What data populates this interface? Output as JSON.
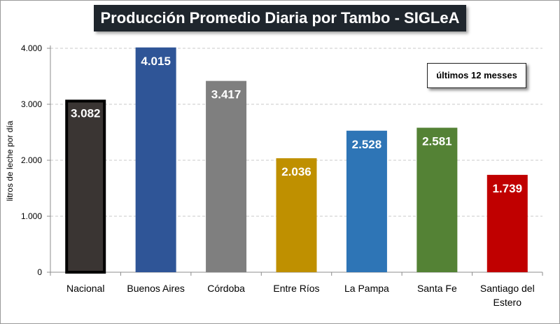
{
  "chart_data": {
    "type": "bar",
    "title": "Producción Promedio Diaria por Tambo - SIGLeA",
    "annotation": "últimos 12 messes",
    "ylabel": "litros de leche por día",
    "xlabel": "",
    "ylim": [
      0,
      4000
    ],
    "yticks": [
      "0",
      "1.000",
      "2.000",
      "3.000",
      "4.000"
    ],
    "ytick_values": [
      0,
      1000,
      2000,
      3000,
      4000
    ],
    "grid": true,
    "categories": [
      [
        "Nacional"
      ],
      [
        "Buenos Aires"
      ],
      [
        "Córdoba"
      ],
      [
        "Entre Ríos"
      ],
      [
        "La Pampa"
      ],
      [
        "Santa Fe"
      ],
      [
        "Santiago del",
        "Estero"
      ]
    ],
    "values": [
      3082,
      4015,
      3417,
      2036,
      2528,
      2581,
      1739
    ],
    "value_labels": [
      "3.082",
      "4.015",
      "3.417",
      "2.036",
      "2.528",
      "2.581",
      "1.739"
    ],
    "colors": [
      "#3a3533",
      "#2f5597",
      "#7f7f7f",
      "#bf9000",
      "#2e75b6",
      "#548235",
      "#c00000"
    ],
    "highlight_border": "#000000"
  }
}
